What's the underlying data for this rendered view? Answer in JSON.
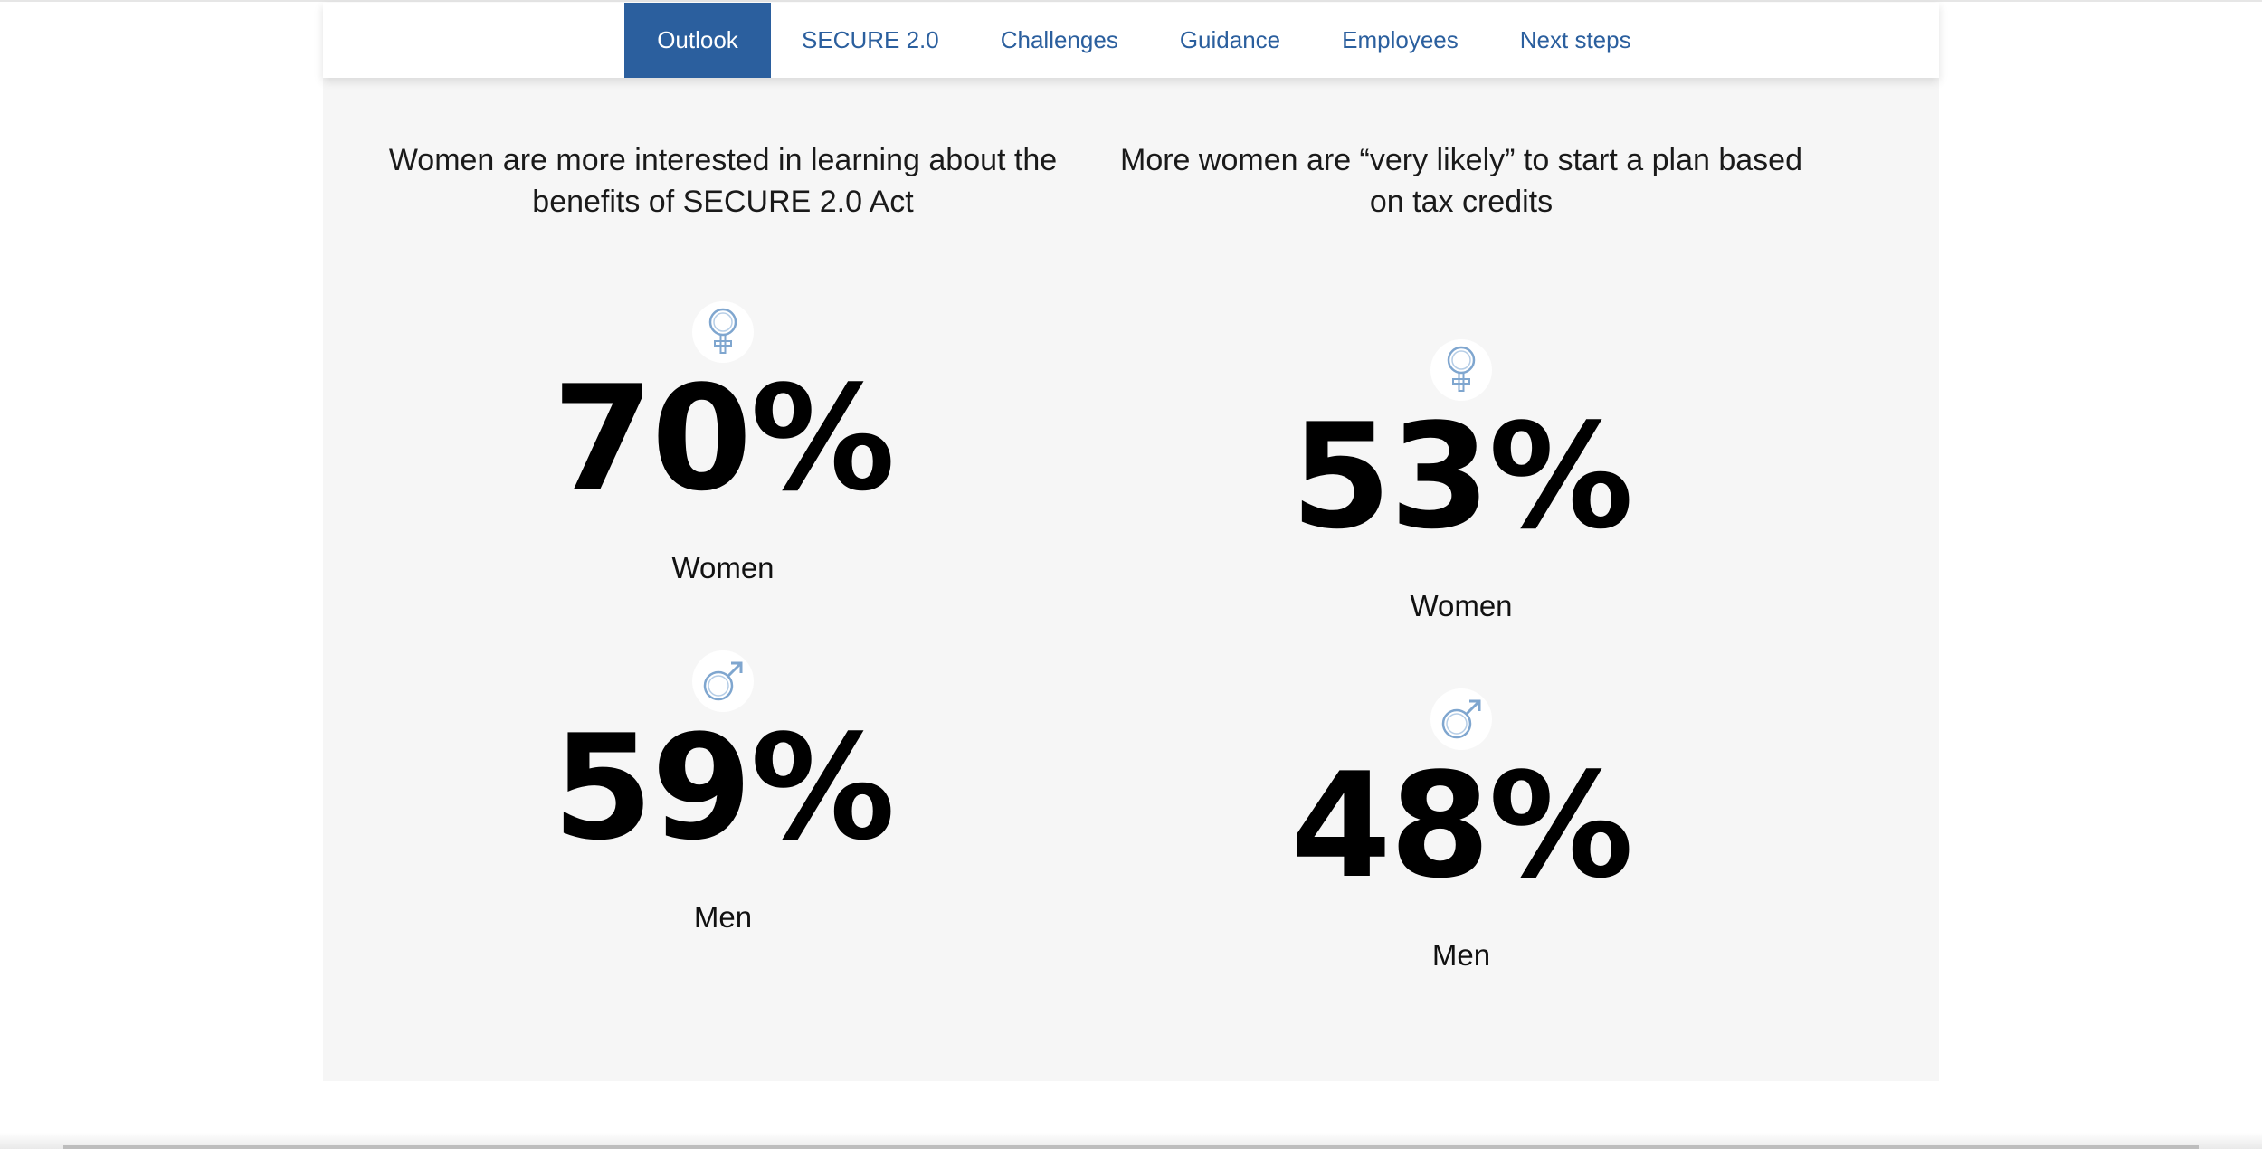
{
  "nav": {
    "tabs": [
      {
        "label": "Outlook",
        "active": true
      },
      {
        "label": "SECURE 2.0",
        "active": false
      },
      {
        "label": "Challenges",
        "active": false
      },
      {
        "label": "Guidance",
        "active": false
      },
      {
        "label": "Employees",
        "active": false
      },
      {
        "label": "Next steps",
        "active": false
      }
    ],
    "accent_color": "#2b5f9e"
  },
  "columns": [
    {
      "title": "Women are more interested in learning about the benefits of SECURE 2.0 Act",
      "women": {
        "icon": "female-symbol-icon",
        "value": "70%",
        "label": "Women"
      },
      "men": {
        "icon": "male-symbol-icon",
        "value": "59%",
        "label": "Men"
      }
    },
    {
      "title": "More women are “very likely” to start a plan based on tax credits",
      "women": {
        "icon": "female-symbol-icon",
        "value": "53%",
        "label": "Women"
      },
      "men": {
        "icon": "male-symbol-icon",
        "value": "48%",
        "label": "Men"
      }
    }
  ]
}
